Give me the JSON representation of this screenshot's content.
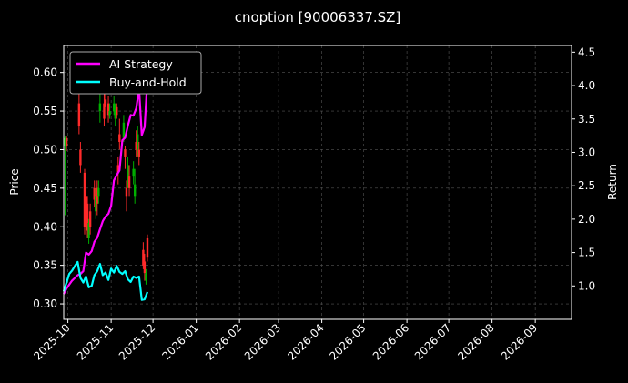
{
  "chart_data": {
    "type": "line",
    "title": "cnoption [90006337.SZ]",
    "ylabel_left": "Price",
    "ylabel_right": "Return",
    "ylim_left": [
      0.28,
      0.635
    ],
    "ylim_right": [
      0.5,
      4.6
    ],
    "xlim": [
      "2025-09-28",
      "2026-09-27"
    ],
    "x_ticks": [
      "2025-10",
      "2025-11",
      "2025-12",
      "2026-01",
      "2026-02",
      "2026-03",
      "2026-04",
      "2026-05",
      "2026-06",
      "2026-07",
      "2026-08",
      "2026-09"
    ],
    "y_ticks_left": [
      0.3,
      0.35,
      0.4,
      0.45,
      0.5,
      0.55,
      0.6
    ],
    "y_ticks_right": [
      1.0,
      1.5,
      2.0,
      2.5,
      3.0,
      3.5,
      4.0,
      4.5
    ],
    "y_tick_labels_left": [
      "0.30",
      "0.35",
      "0.40",
      "0.45",
      "0.50",
      "0.55",
      "0.60"
    ],
    "y_tick_labels_right": [
      "1.0",
      "1.5",
      "2.0",
      "2.5",
      "3.0",
      "3.5",
      "4.0",
      "4.5"
    ],
    "grid": true,
    "legend_position": "top-left",
    "colors": {
      "background": "#000000",
      "up": "#00b000",
      "down": "#ff2a2a",
      "ai_strategy": "#ff00ff",
      "buy_and_hold": "#00ffff",
      "grid": "#555555"
    },
    "candles": [
      {
        "date": "2025-09-29",
        "open": 0.505,
        "close": 0.515,
        "high": 0.517,
        "low": 0.415
      },
      {
        "date": "2025-09-30",
        "open": 0.515,
        "close": 0.505,
        "high": 0.517,
        "low": 0.498
      },
      {
        "date": "2025-10-09",
        "open": 0.56,
        "close": 0.53,
        "high": 0.62,
        "low": 0.52
      },
      {
        "date": "2025-10-10",
        "open": 0.5,
        "close": 0.48,
        "high": 0.51,
        "low": 0.47
      },
      {
        "date": "2025-10-13",
        "open": 0.47,
        "close": 0.4,
        "high": 0.475,
        "low": 0.39
      },
      {
        "date": "2025-10-14",
        "open": 0.44,
        "close": 0.4,
        "high": 0.45,
        "low": 0.395
      },
      {
        "date": "2025-10-15",
        "open": 0.43,
        "close": 0.395,
        "high": 0.44,
        "low": 0.385
      },
      {
        "date": "2025-10-16",
        "open": 0.385,
        "close": 0.405,
        "high": 0.41,
        "low": 0.378
      },
      {
        "date": "2025-10-17",
        "open": 0.42,
        "close": 0.4,
        "high": 0.43,
        "low": 0.39
      },
      {
        "date": "2025-10-20",
        "open": 0.45,
        "close": 0.435,
        "high": 0.46,
        "low": 0.425
      },
      {
        "date": "2025-10-21",
        "open": 0.42,
        "close": 0.44,
        "high": 0.45,
        "low": 0.41
      },
      {
        "date": "2025-10-22",
        "open": 0.45,
        "close": 0.43,
        "high": 0.46,
        "low": 0.415
      },
      {
        "date": "2025-10-23",
        "open": 0.44,
        "close": 0.45,
        "high": 0.46,
        "low": 0.43
      },
      {
        "date": "2025-10-24",
        "open": 0.55,
        "close": 0.56,
        "high": 0.575,
        "low": 0.535
      },
      {
        "date": "2025-10-27",
        "open": 0.56,
        "close": 0.54,
        "high": 0.58,
        "low": 0.53
      },
      {
        "date": "2025-10-28",
        "open": 0.565,
        "close": 0.56,
        "high": 0.585,
        "low": 0.555
      },
      {
        "date": "2025-10-29",
        "open": 0.6,
        "close": 0.59,
        "high": 0.615,
        "low": 0.575
      },
      {
        "date": "2025-10-30",
        "open": 0.56,
        "close": 0.545,
        "high": 0.57,
        "low": 0.535
      },
      {
        "date": "2025-10-31",
        "open": 0.545,
        "close": 0.55,
        "high": 0.56,
        "low": 0.54
      },
      {
        "date": "2025-11-03",
        "open": 0.55,
        "close": 0.56,
        "high": 0.57,
        "low": 0.545
      },
      {
        "date": "2025-11-04",
        "open": 0.54,
        "close": 0.55,
        "high": 0.56,
        "low": 0.53
      },
      {
        "date": "2025-11-05",
        "open": 0.555,
        "close": 0.545,
        "high": 0.56,
        "low": 0.54
      },
      {
        "date": "2025-11-06",
        "open": 0.48,
        "close": 0.47,
        "high": 0.49,
        "low": 0.455
      },
      {
        "date": "2025-11-07",
        "open": 0.52,
        "close": 0.51,
        "high": 0.54,
        "low": 0.5
      },
      {
        "date": "2025-11-10",
        "open": 0.515,
        "close": 0.535,
        "high": 0.545,
        "low": 0.51
      },
      {
        "date": "2025-11-11",
        "open": 0.5,
        "close": 0.49,
        "high": 0.505,
        "low": 0.475
      },
      {
        "date": "2025-11-12",
        "open": 0.45,
        "close": 0.44,
        "high": 0.46,
        "low": 0.42
      },
      {
        "date": "2025-11-13",
        "open": 0.455,
        "close": 0.48,
        "high": 0.49,
        "low": 0.45
      },
      {
        "date": "2025-11-14",
        "open": 0.465,
        "close": 0.45,
        "high": 0.48,
        "low": 0.44
      },
      {
        "date": "2025-11-17",
        "open": 0.465,
        "close": 0.475,
        "high": 0.485,
        "low": 0.455
      },
      {
        "date": "2025-11-18",
        "open": 0.44,
        "close": 0.455,
        "high": 0.475,
        "low": 0.43
      },
      {
        "date": "2025-11-19",
        "open": 0.51,
        "close": 0.5,
        "high": 0.525,
        "low": 0.49
      },
      {
        "date": "2025-11-20",
        "open": 0.5,
        "close": 0.52,
        "high": 0.53,
        "low": 0.49
      },
      {
        "date": "2025-11-21",
        "open": 0.5,
        "close": 0.49,
        "high": 0.51,
        "low": 0.48
      },
      {
        "date": "2025-11-24",
        "open": 0.37,
        "close": 0.35,
        "high": 0.38,
        "low": 0.345
      },
      {
        "date": "2025-11-25",
        "open": 0.355,
        "close": 0.34,
        "high": 0.365,
        "low": 0.33
      },
      {
        "date": "2025-11-26",
        "open": 0.33,
        "close": 0.34,
        "high": 0.345,
        "low": 0.325
      },
      {
        "date": "2025-11-27",
        "open": 0.385,
        "close": 0.36,
        "high": 0.39,
        "low": 0.355
      }
    ],
    "series": [
      {
        "name": "AI Strategy",
        "x": [
          "2025-09-28",
          "2025-09-30",
          "2025-10-02",
          "2025-10-04",
          "2025-10-06",
          "2025-10-08",
          "2025-10-10",
          "2025-10-12",
          "2025-10-14",
          "2025-10-16",
          "2025-10-18",
          "2025-10-20",
          "2025-10-22",
          "2025-10-24",
          "2025-10-26",
          "2025-10-28",
          "2025-10-30",
          "2025-11-01",
          "2025-11-03",
          "2025-11-05",
          "2025-11-07",
          "2025-11-09",
          "2025-11-11",
          "2025-11-13",
          "2025-11-15",
          "2025-11-17",
          "2025-11-19",
          "2025-11-21",
          "2025-11-23",
          "2025-11-25",
          "2025-11-27"
        ],
        "values": [
          0.88,
          0.96,
          1.02,
          1.08,
          1.12,
          1.16,
          1.18,
          1.22,
          1.5,
          1.47,
          1.52,
          1.66,
          1.72,
          1.85,
          1.97,
          2.04,
          2.08,
          2.2,
          2.58,
          2.66,
          2.73,
          3.18,
          3.22,
          3.4,
          3.56,
          3.55,
          3.66,
          3.95,
          3.26,
          3.38,
          4.1
        ]
      },
      {
        "name": "Buy-and-Hold",
        "x": [
          "2025-09-28",
          "2025-09-30",
          "2025-10-02",
          "2025-10-04",
          "2025-10-06",
          "2025-10-08",
          "2025-10-10",
          "2025-10-12",
          "2025-10-14",
          "2025-10-16",
          "2025-10-18",
          "2025-10-20",
          "2025-10-22",
          "2025-10-24",
          "2025-10-26",
          "2025-10-28",
          "2025-10-30",
          "2025-11-01",
          "2025-11-03",
          "2025-11-05",
          "2025-11-07",
          "2025-11-09",
          "2025-11-11",
          "2025-11-13",
          "2025-11-15",
          "2025-11-17",
          "2025-11-19",
          "2025-11-21",
          "2025-11-23",
          "2025-11-25",
          "2025-11-27"
        ],
        "values": [
          0.92,
          1.05,
          1.18,
          1.23,
          1.3,
          1.36,
          1.12,
          1.05,
          1.14,
          0.98,
          1.0,
          1.16,
          1.22,
          1.33,
          1.16,
          1.2,
          1.09,
          1.26,
          1.2,
          1.3,
          1.21,
          1.18,
          1.22,
          1.1,
          1.06,
          1.14,
          1.12,
          1.14,
          0.79,
          0.8,
          0.91
        ]
      }
    ]
  }
}
